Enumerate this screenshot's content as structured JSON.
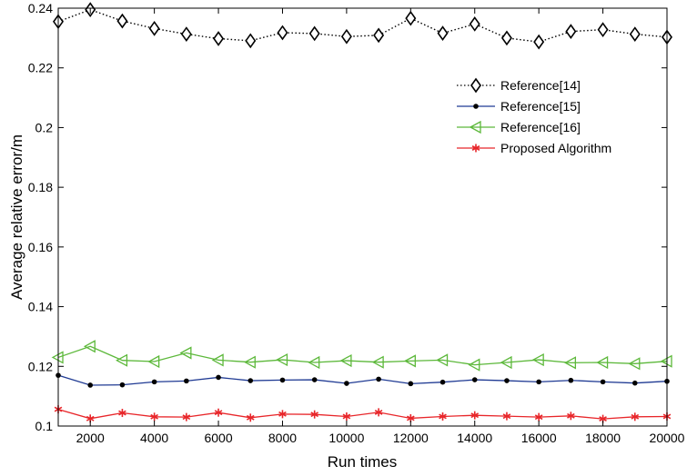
{
  "chart_data": {
    "type": "line",
    "title": "",
    "xlabel": "Run times",
    "ylabel": "Average relative error/m",
    "xlim": [
      1000,
      20000
    ],
    "ylim": [
      0.1,
      0.24
    ],
    "xticks": [
      2000,
      4000,
      6000,
      8000,
      10000,
      12000,
      14000,
      16000,
      18000,
      20000
    ],
    "yticks": [
      0.1,
      0.12,
      0.14,
      0.16,
      0.18,
      0.2,
      0.22,
      0.24
    ],
    "xtick_labels": [
      "2000",
      "4000",
      "6000",
      "8000",
      "10000",
      "12000",
      "14000",
      "16000",
      "18000",
      "20000"
    ],
    "ytick_labels": [
      "0.1",
      "0.12",
      "0.14",
      "0.16",
      "0.18",
      "0.2",
      "0.22",
      "0.24"
    ],
    "grid": false,
    "legend_position": "top-right",
    "x": [
      1000,
      2000,
      3000,
      4000,
      5000,
      6000,
      7000,
      8000,
      9000,
      10000,
      11000,
      12000,
      13000,
      14000,
      15000,
      16000,
      17000,
      18000,
      19000,
      20000
    ],
    "series": [
      {
        "name": "Reference[14]",
        "color": "#000000",
        "line_style": "dotted",
        "marker": "diamond",
        "values": [
          0.2355,
          0.2395,
          0.2357,
          0.2332,
          0.2313,
          0.2298,
          0.2291,
          0.2318,
          0.2315,
          0.2305,
          0.2309,
          0.2366,
          0.2316,
          0.2347,
          0.23,
          0.2287,
          0.2322,
          0.2328,
          0.2313,
          0.2303
        ]
      },
      {
        "name": "Reference[15]",
        "color": "#1f3a93",
        "line_style": "solid",
        "marker": "dot",
        "values": [
          0.117,
          0.1137,
          0.1138,
          0.1148,
          0.1151,
          0.1163,
          0.1152,
          0.1154,
          0.1155,
          0.1143,
          0.1157,
          0.1142,
          0.1147,
          0.1155,
          0.1152,
          0.1148,
          0.1153,
          0.1148,
          0.1144,
          0.115
        ]
      },
      {
        "name": "Reference[16]",
        "color": "#5cb83a",
        "line_style": "solid",
        "marker": "triangle-left",
        "values": [
          0.123,
          0.1267,
          0.122,
          0.1216,
          0.1245,
          0.1221,
          0.1214,
          0.1222,
          0.1213,
          0.1219,
          0.1214,
          0.1218,
          0.1221,
          0.1205,
          0.1213,
          0.1222,
          0.1212,
          0.1213,
          0.1209,
          0.1217
        ]
      },
      {
        "name": "Proposed Algorithm",
        "color": "#e8262a",
        "line_style": "solid",
        "marker": "asterisk",
        "values": [
          0.1056,
          0.1025,
          0.1044,
          0.1031,
          0.103,
          0.1045,
          0.1028,
          0.104,
          0.1039,
          0.1032,
          0.1046,
          0.1026,
          0.1032,
          0.1036,
          0.1033,
          0.103,
          0.1034,
          0.1024,
          0.1031,
          0.1032
        ]
      }
    ]
  }
}
